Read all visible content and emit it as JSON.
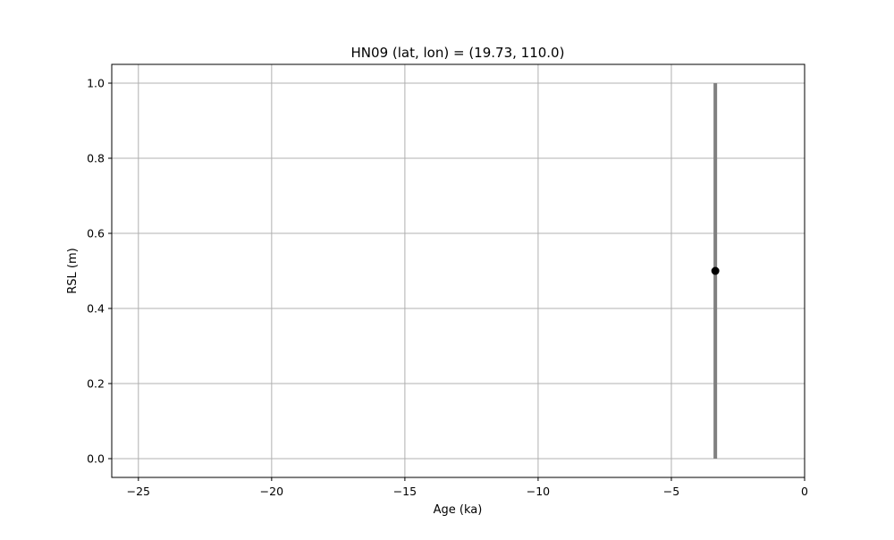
{
  "chart_data": {
    "type": "scatter",
    "title": "HN09 (lat, lon) = (19.73, 110.0)",
    "xlabel": "Age (ka)",
    "ylabel": "RSL (m)",
    "xlim": [
      -26,
      0
    ],
    "ylim": [
      -0.05,
      1.05
    ],
    "x_ticks": [
      -25,
      -20,
      -15,
      -10,
      -5,
      0
    ],
    "x_tick_labels": [
      "−25",
      "−20",
      "−15",
      "−10",
      "−5",
      "0"
    ],
    "y_ticks": [
      0.0,
      0.2,
      0.4,
      0.6,
      0.8,
      1.0
    ],
    "y_tick_labels": [
      "0.0",
      "0.2",
      "0.4",
      "0.6",
      "0.8",
      "1.0"
    ],
    "grid": true,
    "points": [
      {
        "x": -3.35,
        "y": 0.5,
        "y_low": 0.0,
        "y_high": 1.0
      }
    ],
    "point_color": "#000000",
    "errorbar_color": "#808080"
  }
}
